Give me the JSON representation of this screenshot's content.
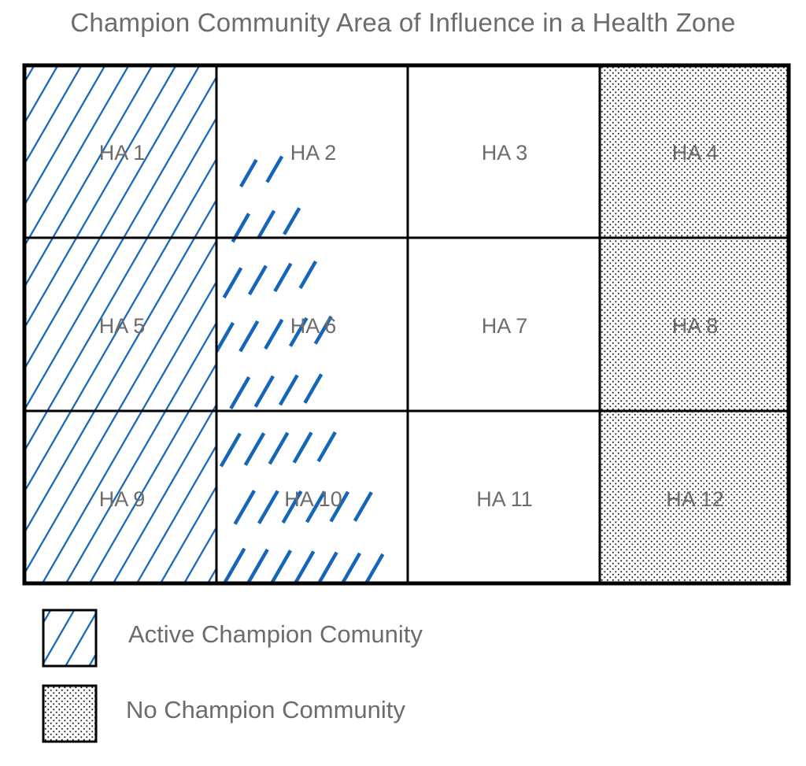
{
  "title": "Champion Community Area of Influence in a Health Zone",
  "grid": {
    "rows": 3,
    "columns": 4,
    "cells": [
      {
        "label": "HA 1",
        "status": "active"
      },
      {
        "label": "HA 2",
        "status": "partial"
      },
      {
        "label": "HA 3",
        "status": "none-marked"
      },
      {
        "label": "HA 4",
        "status": "no-champion"
      },
      {
        "label": "HA 5",
        "status": "active"
      },
      {
        "label": "HA 6",
        "status": "partial"
      },
      {
        "label": "HA 7",
        "status": "none-marked"
      },
      {
        "label": "HA 8",
        "status": "no-champion"
      },
      {
        "label": "HA 9",
        "status": "active"
      },
      {
        "label": "HA 10",
        "status": "partial"
      },
      {
        "label": "HA 11",
        "status": "none-marked"
      },
      {
        "label": "HA 12",
        "status": "no-champion"
      }
    ]
  },
  "legend": {
    "active": {
      "label": "Active Champion Comunity",
      "pattern": "diagonal-hatch"
    },
    "none": {
      "label": "No Champion Community",
      "pattern": "dots"
    }
  },
  "colors": {
    "hatch": "#1565b8",
    "text": "#6f6b6b",
    "border": "#000000",
    "dots": "#222222"
  }
}
